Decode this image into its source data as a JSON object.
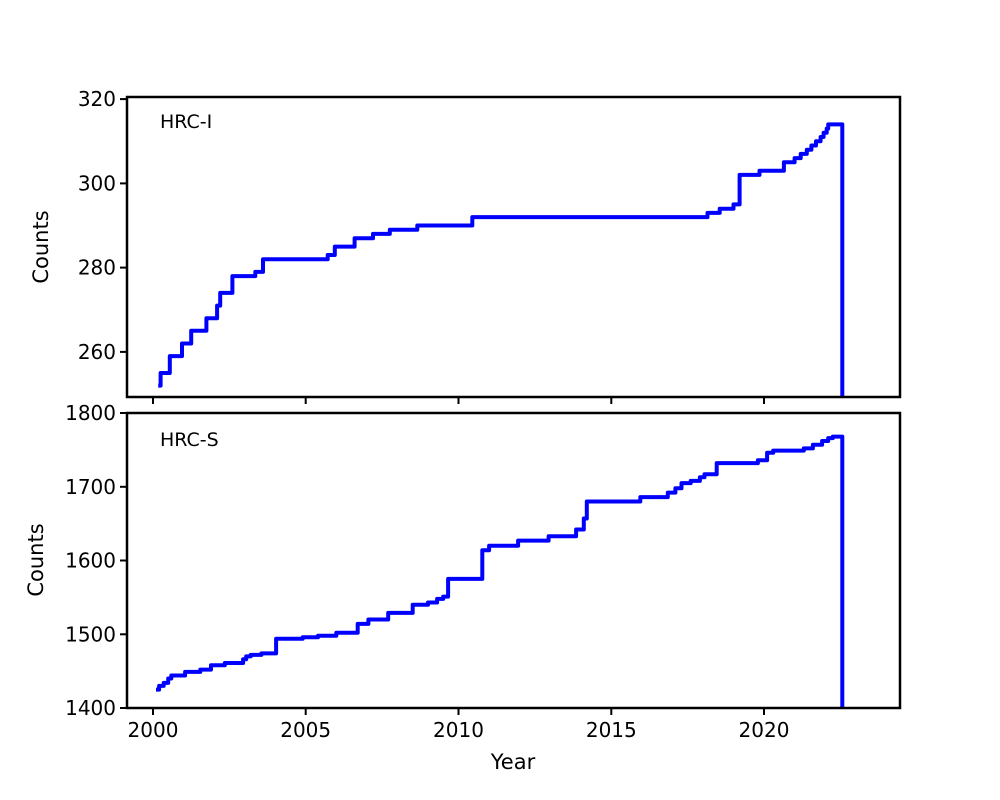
{
  "figure": {
    "background": "#ffffff",
    "axis_color": "#000000",
    "line_color": "#0000ff"
  },
  "chart_data": [
    {
      "type": "line",
      "drawstyle": "steps-post",
      "label": "HRC-I",
      "ylabel": "Counts",
      "xlabel": "",
      "line_color": "#0000ff",
      "xlim": [
        1999.15,
        2024.45
      ],
      "ylim": [
        249.3,
        320.5
      ],
      "xticks": [
        2000,
        2005,
        2010,
        2015,
        2020
      ],
      "show_xtick_labels": false,
      "yticks": [
        260,
        280,
        300,
        320
      ],
      "grid": false,
      "points": [
        [
          2000.17,
          252
        ],
        [
          2000.25,
          255
        ],
        [
          2000.55,
          259
        ],
        [
          2000.95,
          262
        ],
        [
          2001.25,
          265
        ],
        [
          2001.75,
          268
        ],
        [
          2002.1,
          271
        ],
        [
          2002.2,
          274
        ],
        [
          2002.6,
          278
        ],
        [
          2003.35,
          279
        ],
        [
          2003.6,
          282
        ],
        [
          2005.72,
          283
        ],
        [
          2005.95,
          285
        ],
        [
          2006.6,
          287
        ],
        [
          2007.2,
          288
        ],
        [
          2007.75,
          289
        ],
        [
          2008.65,
          290
        ],
        [
          2010.45,
          292
        ],
        [
          2018.15,
          293
        ],
        [
          2018.55,
          294
        ],
        [
          2019.0,
          295
        ],
        [
          2019.2,
          302
        ],
        [
          2019.85,
          303
        ],
        [
          2020.65,
          305
        ],
        [
          2021.0,
          306
        ],
        [
          2021.2,
          307
        ],
        [
          2021.4,
          308
        ],
        [
          2021.55,
          309
        ],
        [
          2021.7,
          310
        ],
        [
          2021.85,
          311
        ],
        [
          2021.95,
          312
        ],
        [
          2022.05,
          313
        ],
        [
          2022.1,
          314
        ],
        [
          2022.56,
          249.3
        ]
      ]
    },
    {
      "type": "line",
      "drawstyle": "steps-post",
      "label": "HRC-S",
      "ylabel": "Counts",
      "xlabel": "Year",
      "line_color": "#0000ff",
      "xlim": [
        1999.15,
        2024.45
      ],
      "ylim": [
        1400,
        1800
      ],
      "xticks": [
        2000,
        2005,
        2010,
        2015,
        2020
      ],
      "show_xtick_labels": true,
      "yticks": [
        1400,
        1500,
        1600,
        1700,
        1800
      ],
      "grid": false,
      "points": [
        [
          2000.1,
          1425
        ],
        [
          2000.2,
          1430
        ],
        [
          2000.35,
          1434
        ],
        [
          2000.5,
          1440
        ],
        [
          2000.6,
          1444
        ],
        [
          2001.05,
          1449
        ],
        [
          2001.55,
          1452
        ],
        [
          2001.9,
          1458
        ],
        [
          2002.35,
          1461
        ],
        [
          2002.95,
          1466
        ],
        [
          2003.05,
          1470
        ],
        [
          2003.2,
          1472
        ],
        [
          2003.55,
          1474
        ],
        [
          2004.03,
          1494
        ],
        [
          2004.9,
          1496
        ],
        [
          2005.4,
          1498
        ],
        [
          2006.0,
          1502
        ],
        [
          2006.7,
          1514
        ],
        [
          2007.05,
          1520
        ],
        [
          2007.7,
          1529
        ],
        [
          2008.5,
          1540
        ],
        [
          2009.0,
          1543
        ],
        [
          2009.3,
          1548
        ],
        [
          2009.5,
          1551
        ],
        [
          2009.66,
          1575
        ],
        [
          2010.78,
          1614
        ],
        [
          2011.0,
          1620
        ],
        [
          2011.95,
          1627
        ],
        [
          2012.95,
          1633
        ],
        [
          2013.85,
          1642
        ],
        [
          2014.1,
          1657
        ],
        [
          2014.2,
          1680
        ],
        [
          2015.95,
          1686
        ],
        [
          2016.85,
          1692
        ],
        [
          2017.1,
          1698
        ],
        [
          2017.3,
          1705
        ],
        [
          2017.6,
          1708
        ],
        [
          2017.9,
          1713
        ],
        [
          2018.05,
          1717
        ],
        [
          2018.45,
          1732
        ],
        [
          2019.8,
          1736
        ],
        [
          2020.1,
          1746
        ],
        [
          2020.3,
          1749
        ],
        [
          2021.3,
          1752
        ],
        [
          2021.6,
          1757
        ],
        [
          2021.9,
          1762
        ],
        [
          2022.1,
          1766
        ],
        [
          2022.25,
          1768
        ],
        [
          2022.56,
          1400
        ]
      ]
    }
  ]
}
